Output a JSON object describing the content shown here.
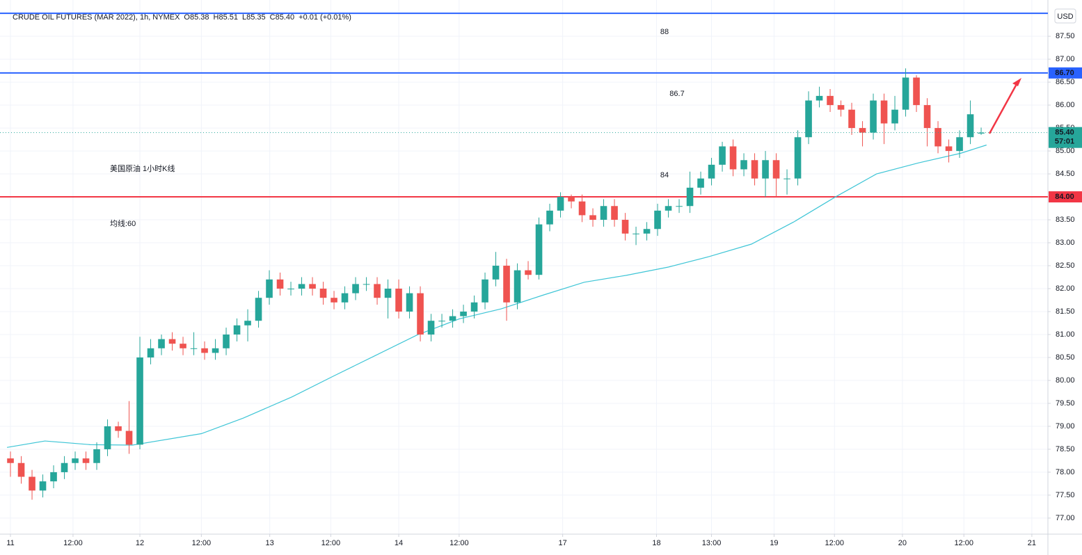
{
  "chart_data": {
    "type": "candlestick",
    "header": {
      "symbol": "CRUDE OIL FUTURES (MAR 2022), 1h, NYMEX",
      "o": "O",
      "h": "H",
      "l": "L",
      "c": "C",
      "change": "+0.01 (+0.01%)"
    },
    "currency": "USD",
    "up_color": "#26a69a",
    "down_color": "#ef5350",
    "grid": true,
    "open": [
      78.3,
      78.2,
      77.9,
      77.6,
      77.8,
      78.0,
      78.2,
      78.3,
      78.2,
      78.5,
      79.0,
      78.9,
      78.6,
      80.5,
      80.7,
      80.9,
      80.8,
      80.7,
      80.7,
      80.6,
      80.7,
      81.0,
      81.2,
      81.3,
      81.8,
      82.2,
      82.0,
      82.0,
      82.1,
      82.0,
      81.8,
      81.7,
      81.9,
      82.1,
      82.1,
      81.8,
      82.0,
      81.5,
      81.9,
      81.0,
      81.3,
      81.3,
      81.4,
      81.5,
      81.7,
      82.2,
      82.5,
      81.7,
      82.4,
      82.3,
      83.4,
      83.7,
      84.0,
      83.9,
      83.6,
      83.5,
      83.8,
      83.5,
      83.2,
      83.2,
      83.3,
      83.7,
      83.8,
      83.8,
      84.2,
      84.4,
      84.7,
      85.1,
      84.6,
      84.8,
      84.4,
      84.8,
      84.4,
      84.4,
      85.3,
      86.1,
      86.2,
      86.0,
      85.9,
      85.5,
      85.4,
      86.1,
      85.6,
      85.9,
      86.6,
      86.0,
      85.5,
      85.1,
      85.0,
      85.3,
      85.38
    ],
    "high": [
      78.45,
      78.35,
      78.05,
      77.95,
      78.15,
      78.35,
      78.45,
      78.45,
      78.65,
      79.15,
      79.1,
      79.55,
      80.95,
      80.9,
      81.0,
      81.05,
      80.95,
      81.05,
      80.85,
      80.9,
      81.15,
      81.35,
      81.55,
      81.95,
      82.4,
      82.35,
      82.15,
      82.25,
      82.25,
      82.15,
      81.95,
      82.05,
      82.25,
      82.25,
      82.25,
      82.2,
      82.2,
      82.05,
      82.05,
      81.45,
      81.45,
      81.55,
      81.65,
      81.85,
      82.35,
      82.8,
      82.65,
      82.55,
      82.6,
      83.55,
      83.85,
      84.1,
      84.05,
      84.05,
      83.75,
      83.95,
      83.95,
      83.65,
      83.35,
      83.45,
      83.85,
      83.95,
      83.95,
      84.55,
      84.55,
      84.85,
      85.2,
      85.25,
      84.95,
      84.95,
      85.0,
      84.95,
      84.6,
      85.45,
      86.3,
      86.4,
      86.35,
      86.1,
      86.05,
      85.65,
      86.25,
      86.25,
      86.2,
      86.8,
      86.65,
      86.15,
      85.65,
      85.25,
      85.45,
      86.1,
      85.51
    ],
    "low": [
      77.9,
      77.75,
      77.4,
      77.45,
      77.65,
      77.85,
      78.05,
      78.05,
      78.05,
      78.35,
      78.75,
      78.4,
      78.5,
      80.35,
      80.55,
      80.65,
      80.55,
      80.55,
      80.45,
      80.45,
      80.55,
      80.85,
      80.85,
      81.15,
      81.65,
      81.85,
      81.85,
      81.85,
      81.85,
      81.65,
      81.55,
      81.55,
      81.75,
      81.95,
      81.65,
      81.35,
      81.35,
      81.35,
      80.85,
      80.85,
      81.15,
      81.15,
      81.25,
      81.35,
      81.55,
      82.05,
      81.3,
      81.55,
      82.2,
      82.2,
      83.25,
      83.55,
      83.75,
      83.45,
      83.35,
      83.35,
      83.35,
      83.05,
      82.95,
      83.05,
      83.15,
      83.55,
      83.65,
      83.65,
      84.05,
      84.25,
      84.55,
      84.45,
      84.45,
      84.25,
      84.0,
      84.0,
      84.05,
      84.25,
      85.15,
      85.95,
      85.85,
      85.75,
      85.35,
      85.1,
      85.25,
      85.15,
      85.45,
      85.75,
      85.85,
      85.1,
      84.95,
      84.75,
      84.85,
      85.15,
      85.35
    ],
    "close": [
      78.2,
      77.9,
      77.6,
      77.8,
      78.0,
      78.2,
      78.3,
      78.2,
      78.5,
      79.0,
      78.9,
      78.6,
      80.5,
      80.7,
      80.9,
      80.8,
      80.7,
      80.7,
      80.6,
      80.7,
      81.0,
      81.2,
      81.3,
      81.8,
      82.2,
      82.0,
      82.0,
      82.1,
      82.0,
      81.8,
      81.7,
      81.9,
      82.1,
      82.1,
      81.8,
      82.0,
      81.5,
      81.9,
      81.0,
      81.3,
      81.3,
      81.4,
      81.5,
      81.7,
      82.2,
      82.5,
      81.7,
      82.4,
      82.3,
      83.4,
      83.7,
      84.0,
      83.9,
      83.6,
      83.5,
      83.8,
      83.5,
      83.2,
      83.2,
      83.3,
      83.7,
      83.8,
      83.8,
      84.2,
      84.4,
      84.7,
      85.1,
      84.6,
      84.8,
      84.4,
      84.8,
      84.4,
      84.4,
      85.3,
      86.1,
      86.2,
      86.0,
      85.9,
      85.5,
      85.4,
      86.1,
      85.6,
      85.9,
      86.6,
      86.0,
      85.5,
      85.1,
      85.0,
      85.3,
      85.8,
      85.4
    ],
    "moving_average": {
      "color": "#3ec5d6",
      "x": [
        -0.32,
        3.2,
        7.4,
        11.3,
        17.7,
        21.6,
        26.1,
        30.0,
        33.9,
        37.7,
        41.6,
        45.5,
        49.4,
        53.2,
        57.1,
        61.0,
        64.8,
        68.7,
        72.6,
        76.5,
        80.3,
        84.2,
        88.1,
        90.5
      ],
      "values": [
        78.54,
        78.68,
        78.6,
        78.59,
        78.84,
        79.18,
        79.64,
        80.1,
        80.55,
        80.99,
        81.34,
        81.56,
        81.86,
        82.14,
        82.29,
        82.47,
        82.7,
        82.97,
        83.45,
        84.0,
        84.5,
        84.74,
        84.95,
        85.13
      ]
    },
    "hlines": [
      {
        "value": 88,
        "color": "#2962ff"
      },
      {
        "value": 86.7,
        "label": "86.70",
        "color": "#2962ff"
      },
      {
        "value": 84,
        "label": "84.00",
        "color": "#f23645"
      }
    ],
    "last_price": {
      "label": "85.40",
      "countdown": "57:01",
      "color": "#26a69a"
    },
    "annotations": {
      "color": "#f23645",
      "texts": [
        "88",
        "86.7",
        "84",
        "美国原油 1小时K线",
        "均线:60"
      ]
    },
    "xlim": [
      -0.97,
      96.19
    ],
    "xticks": [
      {
        "value": 0,
        "label": "11"
      },
      {
        "value": 5.8,
        "label": "12:00"
      },
      {
        "value": 12,
        "label": "12"
      },
      {
        "value": 17.7,
        "label": "12:00"
      },
      {
        "value": 24.04,
        "label": "13"
      },
      {
        "value": 29.7,
        "label": "12:00"
      },
      {
        "value": 36,
        "label": "14"
      },
      {
        "value": 41.6,
        "label": "12:00"
      },
      {
        "value": 51.2,
        "label": "17"
      },
      {
        "value": 59.9,
        "label": "18"
      },
      {
        "value": 65,
        "label": "13:00"
      },
      {
        "value": 70.8,
        "label": "19"
      },
      {
        "value": 76.4,
        "label": "12:00"
      },
      {
        "value": 82.7,
        "label": "20"
      },
      {
        "value": 88.4,
        "label": "12:00"
      },
      {
        "value": 94.7,
        "label": "21"
      }
    ],
    "ylim": [
      76.65,
      88.29
    ],
    "yticks": [
      {
        "value": 77,
        "label": "77.00"
      },
      {
        "value": 77.5,
        "label": "77.50"
      },
      {
        "value": 78,
        "label": "78.00"
      },
      {
        "value": 78.5,
        "label": "78.50"
      },
      {
        "value": 79,
        "label": "79.00"
      },
      {
        "value": 79.5,
        "label": "79.50"
      },
      {
        "value": 80,
        "label": "80.00"
      },
      {
        "value": 80.5,
        "label": "80.50"
      },
      {
        "value": 81,
        "label": "81.00"
      },
      {
        "value": 81.5,
        "label": "81.50"
      },
      {
        "value": 82,
        "label": "82.00"
      },
      {
        "value": 82.5,
        "label": "82.50"
      },
      {
        "value": 83,
        "label": "83.00"
      },
      {
        "value": 83.5,
        "label": "83.50"
      },
      {
        "value": 84,
        "label": "84.00"
      },
      {
        "value": 84.5,
        "label": "84.50"
      },
      {
        "value": 85,
        "label": "85.00"
      },
      {
        "value": 85.5,
        "label": "85.50"
      },
      {
        "value": 86,
        "label": "86.00"
      },
      {
        "value": 86.5,
        "label": "86.50"
      },
      {
        "value": 87,
        "label": "87.00"
      },
      {
        "value": 87.5,
        "label": "87.50"
      }
    ]
  }
}
